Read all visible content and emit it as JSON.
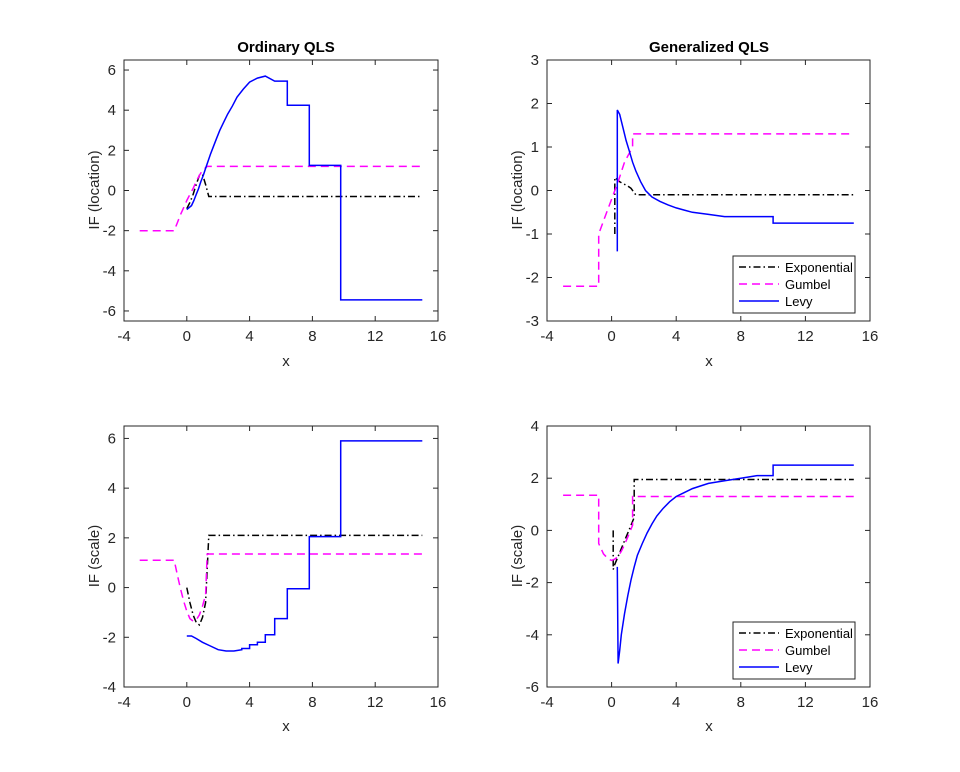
{
  "figure": {
    "background": "#ffffff",
    "axis_color": "#262626"
  },
  "series_styles": {
    "Exponential": {
      "color": "#000000",
      "dash": "dashdot"
    },
    "Gumbel": {
      "color": "#ff00ff",
      "dash": "dashed"
    },
    "Levy": {
      "color": "#0000ff",
      "dash": "solid"
    }
  },
  "chart_data": [
    {
      "id": "ordinary-location",
      "type": "line",
      "title": "Ordinary QLS",
      "xlabel": "x",
      "ylabel": "IF (location)",
      "xlim": [
        -4,
        16
      ],
      "ylim": [
        -6.5,
        6.5
      ],
      "xticks": [
        -4,
        0,
        4,
        8,
        12,
        16
      ],
      "yticks": [
        -6,
        -4,
        -2,
        0,
        2,
        4,
        6
      ],
      "legend": null,
      "series": [
        {
          "name": "Exponential",
          "x": [
            0,
            0.2,
            0.4,
            0.6,
            0.8,
            1.0,
            1.2,
            1.4,
            15
          ],
          "y": [
            -0.9,
            -0.6,
            -0.2,
            0.3,
            0.75,
            0.8,
            0.3,
            -0.3,
            -0.3
          ]
        },
        {
          "name": "Gumbel",
          "x": [
            -3,
            -0.8,
            -0.6,
            -0.4,
            -0.2,
            0,
            0.2,
            0.4,
            0.6,
            0.8,
            1.0,
            1.3,
            15
          ],
          "y": [
            -2.0,
            -2.0,
            -1.6,
            -1.2,
            -0.85,
            -0.5,
            -0.2,
            0.1,
            0.45,
            0.75,
            1.0,
            1.2,
            1.2
          ]
        },
        {
          "name": "Levy",
          "x": [
            0,
            0.3,
            0.45,
            0.6,
            0.75,
            0.9,
            1.05,
            1.2,
            1.35,
            1.5,
            1.7,
            1.9,
            2.1,
            2.35,
            2.6,
            2.9,
            3.2,
            3.6,
            4.0,
            4.5,
            5.0,
            5.6,
            6.4,
            6.4,
            7.8,
            7.8,
            9.8,
            9.8,
            15
          ],
          "y": [
            -0.95,
            -0.75,
            -0.5,
            -0.2,
            0.1,
            0.45,
            0.75,
            1.1,
            1.45,
            1.8,
            2.2,
            2.6,
            3.0,
            3.4,
            3.8,
            4.2,
            4.65,
            5.05,
            5.4,
            5.6,
            5.7,
            5.45,
            5.45,
            4.25,
            4.25,
            1.25,
            1.25,
            -5.45,
            -5.45
          ]
        }
      ]
    },
    {
      "id": "generalized-location",
      "type": "line",
      "title": "Generalized QLS",
      "xlabel": "x",
      "ylabel": "IF (location)",
      "xlim": [
        -4,
        16
      ],
      "ylim": [
        -3,
        3
      ],
      "xticks": [
        -4,
        0,
        4,
        8,
        12,
        16
      ],
      "yticks": [
        -3,
        -2,
        -1,
        0,
        1,
        2,
        3
      ],
      "legend": "bottom-right",
      "series": [
        {
          "name": "Exponential",
          "x": [
            0.2,
            0.2,
            0.5,
            1.0,
            1.2,
            1.5,
            15
          ],
          "y": [
            -1.0,
            0.3,
            0.2,
            0.1,
            0.05,
            -0.1,
            -0.1
          ]
        },
        {
          "name": "Gumbel",
          "x": [
            -3,
            -0.8,
            -0.8,
            -0.4,
            0,
            0.4,
            0.8,
            1.3,
            1.3,
            15
          ],
          "y": [
            -2.2,
            -2.2,
            -1.0,
            -0.6,
            -0.2,
            0.2,
            0.65,
            1.0,
            1.3,
            1.3
          ]
        },
        {
          "name": "Levy",
          "x": [
            0.35,
            0.35,
            0.5,
            0.7,
            0.9,
            1.1,
            1.3,
            1.5,
            1.8,
            2.1,
            2.5,
            3.0,
            3.5,
            4.0,
            4.5,
            5.0,
            6.0,
            7.0,
            8.0,
            10.0,
            10.0,
            15
          ],
          "y": [
            -1.4,
            1.85,
            1.75,
            1.45,
            1.15,
            0.9,
            0.65,
            0.45,
            0.2,
            0.0,
            -0.15,
            -0.25,
            -0.33,
            -0.4,
            -0.45,
            -0.5,
            -0.55,
            -0.6,
            -0.6,
            -0.6,
            -0.75,
            -0.75
          ]
        }
      ]
    },
    {
      "id": "ordinary-scale",
      "type": "line",
      "title": "",
      "xlabel": "x",
      "ylabel": "IF (scale)",
      "xlim": [
        -4,
        16
      ],
      "ylim": [
        -4,
        6.5
      ],
      "xticks": [
        -4,
        0,
        4,
        8,
        12,
        16
      ],
      "yticks": [
        -4,
        -2,
        0,
        2,
        4,
        6
      ],
      "legend": null,
      "series": [
        {
          "name": "Exponential",
          "x": [
            0,
            0.2,
            0.4,
            0.6,
            0.8,
            1.0,
            1.2,
            1.4,
            15
          ],
          "y": [
            0.0,
            -0.6,
            -1.1,
            -1.4,
            -1.5,
            -1.2,
            -0.6,
            2.1,
            2.1
          ]
        },
        {
          "name": "Gumbel",
          "x": [
            -3,
            -0.8,
            -0.6,
            -0.4,
            -0.2,
            0,
            0.2,
            0.4,
            0.6,
            0.8,
            1.0,
            1.2,
            1.3,
            15
          ],
          "y": [
            1.1,
            1.1,
            0.5,
            -0.05,
            -0.55,
            -0.95,
            -1.25,
            -1.35,
            -1.3,
            -1.1,
            -0.75,
            -0.3,
            1.35,
            1.35
          ]
        },
        {
          "name": "Levy",
          "x": [
            0,
            0.3,
            0.6,
            1.0,
            1.5,
            2.0,
            2.5,
            3.0,
            3.5,
            3.5,
            4.0,
            4.0,
            4.5,
            4.5,
            5.0,
            5.0,
            5.6,
            5.6,
            6.4,
            6.4,
            7.8,
            7.8,
            9.8,
            9.8,
            15
          ],
          "y": [
            -1.95,
            -1.95,
            -2.05,
            -2.2,
            -2.35,
            -2.5,
            -2.55,
            -2.55,
            -2.5,
            -2.45,
            -2.45,
            -2.3,
            -2.3,
            -2.2,
            -2.2,
            -1.9,
            -1.9,
            -1.25,
            -1.25,
            -0.05,
            -0.05,
            2.05,
            2.05,
            5.9,
            5.9
          ]
        }
      ]
    },
    {
      "id": "generalized-scale",
      "type": "line",
      "title": "",
      "xlabel": "x",
      "ylabel": "IF (scale)",
      "xlim": [
        -4,
        16
      ],
      "ylim": [
        -6,
        4
      ],
      "xticks": [
        -4,
        0,
        4,
        8,
        12,
        16
      ],
      "yticks": [
        -6,
        -4,
        -2,
        0,
        2,
        4
      ],
      "legend": "bottom-right",
      "series": [
        {
          "name": "Exponential",
          "x": [
            0.1,
            0.1,
            0.2,
            0.4,
            0.6,
            0.8,
            1.0,
            1.2,
            1.4,
            1.4,
            15
          ],
          "y": [
            0.0,
            -1.5,
            -1.3,
            -1.0,
            -0.7,
            -0.4,
            -0.1,
            0.2,
            0.5,
            1.95,
            1.95
          ]
        },
        {
          "name": "Gumbel",
          "x": [
            -3,
            -0.8,
            -0.8,
            -0.5,
            -0.2,
            0,
            0.2,
            0.4,
            0.6,
            0.8,
            1.0,
            1.3,
            1.3,
            15
          ],
          "y": [
            1.35,
            1.35,
            -0.5,
            -0.9,
            -1.1,
            -1.15,
            -1.1,
            -1.0,
            -0.8,
            -0.55,
            -0.25,
            0.2,
            1.3,
            1.3
          ]
        },
        {
          "name": "Levy",
          "x": [
            0.35,
            0.4,
            0.5,
            0.6,
            0.8,
            1.0,
            1.2,
            1.4,
            1.6,
            1.9,
            2.2,
            2.5,
            2.8,
            3.2,
            3.6,
            4.0,
            4.5,
            5.0,
            5.5,
            6.0,
            7.0,
            8.0,
            9.0,
            10.0,
            10.0,
            15
          ],
          "y": [
            -1.4,
            -5.1,
            -4.6,
            -4.0,
            -3.2,
            -2.5,
            -1.9,
            -1.4,
            -0.95,
            -0.5,
            -0.1,
            0.25,
            0.55,
            0.85,
            1.1,
            1.3,
            1.45,
            1.6,
            1.7,
            1.8,
            1.9,
            2.0,
            2.1,
            2.1,
            2.5,
            2.5
          ]
        }
      ]
    }
  ]
}
